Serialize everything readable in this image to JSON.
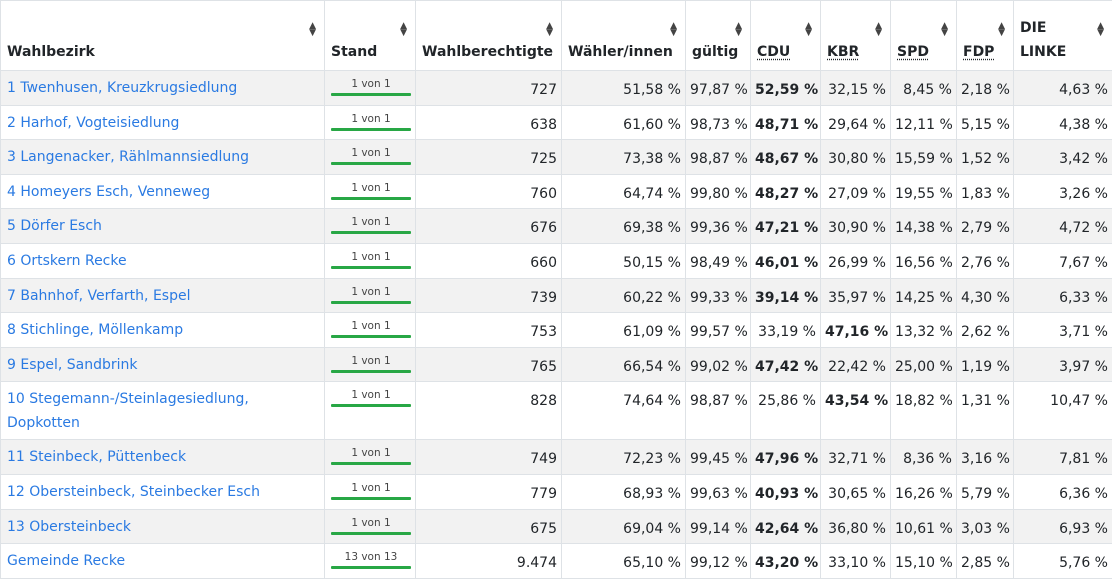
{
  "columns": {
    "wahlbezirk": "Wahlbezirk",
    "stand": "Stand",
    "wahlberechtigte": "Wahlberechtigte",
    "waehler": "Wähler/innen",
    "gueltig": "gültig",
    "cdu": "CDU",
    "kbr": "KBR",
    "spd": "SPD",
    "fdp": "FDP",
    "linke": "DIE LINKE"
  },
  "rows": [
    {
      "name": "1 Twenhusen, Kreuzkrugsiedlung",
      "stand": "1 von 1",
      "wahlberechtigte": "727",
      "waehler": "51,58 %",
      "gueltig": "97,87 %",
      "cdu": "52,59 %",
      "kbr": "32,15 %",
      "spd": "8,45 %",
      "fdp": "2,18 %",
      "linke": "4,63 %",
      "winner": "cdu"
    },
    {
      "name": "2 Harhof, Vogteisiedlung",
      "stand": "1 von 1",
      "wahlberechtigte": "638",
      "waehler": "61,60 %",
      "gueltig": "98,73 %",
      "cdu": "48,71 %",
      "kbr": "29,64 %",
      "spd": "12,11 %",
      "fdp": "5,15 %",
      "linke": "4,38 %",
      "winner": "cdu"
    },
    {
      "name": "3 Langenacker, Rählmannsiedlung",
      "stand": "1 von 1",
      "wahlberechtigte": "725",
      "waehler": "73,38 %",
      "gueltig": "98,87 %",
      "cdu": "48,67 %",
      "kbr": "30,80 %",
      "spd": "15,59 %",
      "fdp": "1,52 %",
      "linke": "3,42 %",
      "winner": "cdu"
    },
    {
      "name": "4 Homeyers Esch, Venneweg",
      "stand": "1 von 1",
      "wahlberechtigte": "760",
      "waehler": "64,74 %",
      "gueltig": "99,80 %",
      "cdu": "48,27 %",
      "kbr": "27,09 %",
      "spd": "19,55 %",
      "fdp": "1,83 %",
      "linke": "3,26 %",
      "winner": "cdu"
    },
    {
      "name": "5 Dörfer Esch",
      "stand": "1 von 1",
      "wahlberechtigte": "676",
      "waehler": "69,38 %",
      "gueltig": "99,36 %",
      "cdu": "47,21 %",
      "kbr": "30,90 %",
      "spd": "14,38 %",
      "fdp": "2,79 %",
      "linke": "4,72 %",
      "winner": "cdu"
    },
    {
      "name": "6 Ortskern Recke",
      "stand": "1 von 1",
      "wahlberechtigte": "660",
      "waehler": "50,15 %",
      "gueltig": "98,49 %",
      "cdu": "46,01 %",
      "kbr": "26,99 %",
      "spd": "16,56 %",
      "fdp": "2,76 %",
      "linke": "7,67 %",
      "winner": "cdu"
    },
    {
      "name": "7 Bahnhof, Verfarth, Espel",
      "stand": "1 von 1",
      "wahlberechtigte": "739",
      "waehler": "60,22 %",
      "gueltig": "99,33 %",
      "cdu": "39,14 %",
      "kbr": "35,97 %",
      "spd": "14,25 %",
      "fdp": "4,30 %",
      "linke": "6,33 %",
      "winner": "cdu"
    },
    {
      "name": "8 Stichlinge, Möllenkamp",
      "stand": "1 von 1",
      "wahlberechtigte": "753",
      "waehler": "61,09 %",
      "gueltig": "99,57 %",
      "cdu": "33,19 %",
      "kbr": "47,16 %",
      "spd": "13,32 %",
      "fdp": "2,62 %",
      "linke": "3,71 %",
      "winner": "kbr"
    },
    {
      "name": "9 Espel, Sandbrink",
      "stand": "1 von 1",
      "wahlberechtigte": "765",
      "waehler": "66,54 %",
      "gueltig": "99,02 %",
      "cdu": "47,42 %",
      "kbr": "22,42 %",
      "spd": "25,00 %",
      "fdp": "1,19 %",
      "linke": "3,97 %",
      "winner": "cdu"
    },
    {
      "name": "10 Stegemann-/Steinlagesiedlung, Dopkotten",
      "stand": "1 von 1",
      "wahlberechtigte": "828",
      "waehler": "74,64 %",
      "gueltig": "98,87 %",
      "cdu": "25,86 %",
      "kbr": "43,54 %",
      "spd": "18,82 %",
      "fdp": "1,31 %",
      "linke": "10,47 %",
      "winner": "kbr",
      "tall": true
    },
    {
      "name": "11 Steinbeck, Püttenbeck",
      "stand": "1 von 1",
      "wahlberechtigte": "749",
      "waehler": "72,23 %",
      "gueltig": "99,45 %",
      "cdu": "47,96 %",
      "kbr": "32,71 %",
      "spd": "8,36 %",
      "fdp": "3,16 %",
      "linke": "7,81 %",
      "winner": "cdu"
    },
    {
      "name": "12 Obersteinbeck, Steinbecker Esch",
      "stand": "1 von 1",
      "wahlberechtigte": "779",
      "waehler": "68,93 %",
      "gueltig": "99,63 %",
      "cdu": "40,93 %",
      "kbr": "30,65 %",
      "spd": "16,26 %",
      "fdp": "5,79 %",
      "linke": "6,36 %",
      "winner": "cdu"
    },
    {
      "name": "13 Obersteinbeck",
      "stand": "1 von 1",
      "wahlberechtigte": "675",
      "waehler": "69,04 %",
      "gueltig": "99,14 %",
      "cdu": "42,64 %",
      "kbr": "36,80 %",
      "spd": "10,61 %",
      "fdp": "3,03 %",
      "linke": "6,93 %",
      "winner": "cdu"
    },
    {
      "name": "Gemeinde Recke",
      "stand": "13 von 13",
      "wahlberechtigte": "9.474",
      "waehler": "65,10 %",
      "gueltig": "99,12 %",
      "cdu": "43,20 %",
      "kbr": "33,10 %",
      "spd": "15,10 %",
      "fdp": "2,85 %",
      "linke": "5,76 %",
      "winner": "cdu"
    }
  ],
  "colors": {
    "link": "#2a7ae2",
    "progress": "#28a745",
    "stripe": "#f2f2f2",
    "border": "#dee2e6"
  },
  "icons": {
    "sort": "sort-icon"
  }
}
